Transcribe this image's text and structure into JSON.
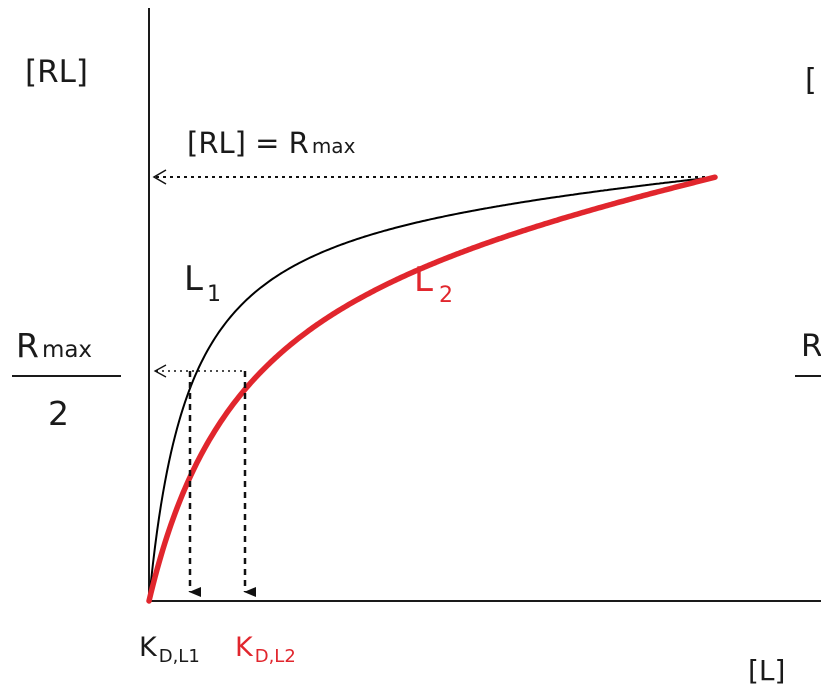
{
  "y_axis_label": "[RL]",
  "x_axis_label": "[L]",
  "rmax_line_label": {
    "main": "[RL]  = R",
    "sub": "max"
  },
  "half_label": {
    "numerator_main": "R",
    "numerator_sub": "max",
    "denominator": "2"
  },
  "curve_labels": {
    "l1": {
      "main": "L",
      "sub": "1"
    },
    "l2": {
      "main": "L",
      "sub": "2"
    }
  },
  "kd_labels": {
    "kd1": {
      "main": "K",
      "sub": "D,L1"
    },
    "kd2": {
      "main": "K",
      "sub": "D,L2"
    }
  },
  "cropped_right_text": {
    "top": "[",
    "middle": "R"
  },
  "colors": {
    "axis": "#1a1a1a",
    "curve_l1": "#000000",
    "curve_l2": "#e1262d",
    "text": "#1a1a1a"
  },
  "chart_data": {
    "type": "line",
    "xlabel": "[L]",
    "ylabel": "[RL]",
    "series": [
      {
        "name": "L1",
        "kd": 1,
        "color": "#000000",
        "width": "thin"
      },
      {
        "name": "L2",
        "kd": 2.45,
        "color": "#e1262d",
        "width": "thick"
      }
    ],
    "x_range": [
      0,
      100
    ],
    "y_range": [
      0,
      1
    ],
    "rmax": 1,
    "half_max": 0.5,
    "annotations": [
      "[RL] = Rmax",
      "Rmax/2",
      "KD,L1",
      "KD,L2"
    ]
  }
}
